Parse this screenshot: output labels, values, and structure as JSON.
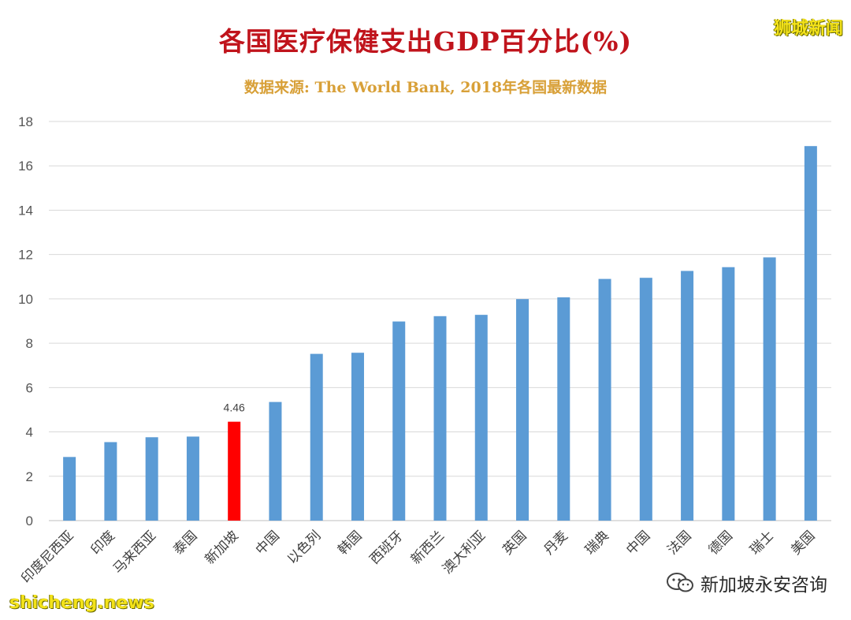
{
  "header": {
    "title": "各国医疗保健支出GDP百分比(%)",
    "subtitle": "数据来源: The World Bank, 2018年各国最新数据"
  },
  "watermarks": {
    "top_right": "狮城新闻",
    "bottom_left": "shicheng.news",
    "wechat_account": "新加坡永安咨询",
    "wechat_icon": "wechat-icon"
  },
  "colors": {
    "title": "#c0141c",
    "subtitle": "#d8a038",
    "bar": "#5b9bd5",
    "highlight_bar": "#ff0000",
    "grid": "#d9d9d9"
  },
  "chart_data": {
    "type": "bar",
    "title": "各国医疗保健支出GDP百分比(%)",
    "subtitle": "数据来源: The World Bank, 2018年各国最新数据",
    "categories": [
      "印度尼西亚",
      "印度",
      "马来西亚",
      "泰国",
      "新加坡",
      "中国",
      "以色列",
      "韩国",
      "西班牙",
      "新西兰",
      "澳大利亚",
      "英国",
      "丹麦",
      "瑞典",
      "中国",
      "法国",
      "德国",
      "瑞士",
      "美国"
    ],
    "values": [
      2.87,
      3.54,
      3.76,
      3.79,
      4.46,
      5.35,
      7.52,
      7.57,
      8.98,
      9.22,
      9.28,
      9.99,
      10.07,
      10.9,
      10.95,
      11.26,
      11.43,
      11.87,
      16.89
    ],
    "highlight_index": 4,
    "data_labels": [
      {
        "index": 4,
        "text": "4.46"
      }
    ],
    "ylim": [
      0,
      18
    ],
    "yticks": [
      0,
      2,
      4,
      6,
      8,
      10,
      12,
      14,
      16,
      18
    ],
    "grid": true,
    "legend": "none",
    "xlabel": "",
    "ylabel": ""
  }
}
